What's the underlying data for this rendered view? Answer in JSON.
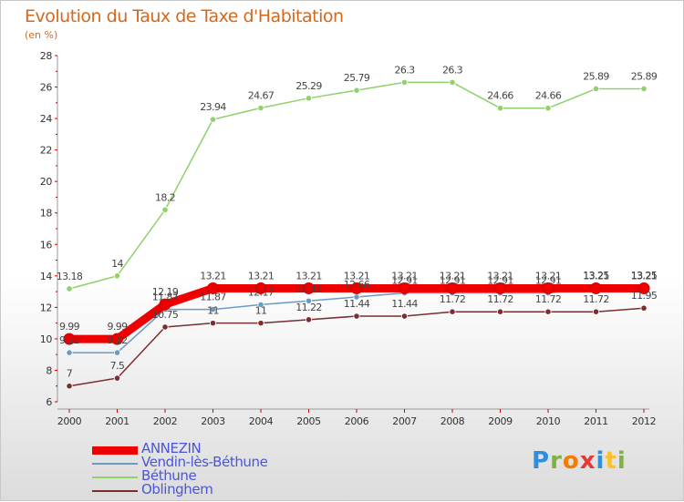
{
  "title": "Evolution du Taux de Taxe d'Habitation",
  "subtitle": "(en %)",
  "logo": {
    "letters": [
      {
        "ch": "P",
        "color": "#2f8ee0"
      },
      {
        "ch": "r",
        "color": "#7cb342"
      },
      {
        "ch": "o",
        "color": "#f57c00"
      },
      {
        "ch": "x",
        "color": "#e53935"
      },
      {
        "ch": "i",
        "color": "#2f8ee0"
      },
      {
        "ch": "t",
        "color": "#fbc02d"
      },
      {
        "ch": "i",
        "color": "#7cb342"
      }
    ]
  },
  "chart_data": {
    "type": "line",
    "title": "Evolution du Taux de Taxe d'Habitation",
    "ylabel": "(en %)",
    "x": [
      "2000",
      "2001",
      "2002",
      "2003",
      "2004",
      "2005",
      "2006",
      "2007",
      "2008",
      "2009",
      "2010",
      "2011",
      "2012"
    ],
    "ylim": [
      6,
      28
    ],
    "yticks": [
      6,
      8,
      10,
      12,
      14,
      16,
      18,
      20,
      22,
      24,
      26,
      28
    ],
    "grid": false,
    "legend_position": "bottom-left",
    "series": [
      {
        "name": "ANNEZIN",
        "color": "#ee0000",
        "values": [
          9.99,
          9.99,
          12.19,
          13.21,
          13.21,
          13.21,
          13.21,
          13.21,
          13.21,
          13.21,
          13.21,
          13.21,
          13.21
        ],
        "labels": [
          "9.99",
          "9.99",
          "12.19",
          "13.21",
          "13.21",
          "13.21",
          "13.21",
          "13.21",
          "13.21",
          "13.21",
          "13.21",
          "13.21",
          "13.21"
        ]
      },
      {
        "name": "Vendin-lès-Béthune",
        "color": "#6b9ac4",
        "values": [
          9.12,
          9.12,
          11.87,
          11.87,
          12.17,
          12.41,
          12.66,
          12.91,
          12.91,
          12.91,
          12.91,
          13.25,
          13.25
        ],
        "labels": [
          "9.12",
          "9.12",
          "11.87",
          "11.87",
          "12.17",
          "12.41",
          "12.66",
          "12.91",
          "12.91",
          "12.91",
          "12.91",
          "13.25",
          "13.25"
        ]
      },
      {
        "name": "Béthune",
        "color": "#8fd16a",
        "values": [
          13.18,
          14,
          18.2,
          23.94,
          24.67,
          25.29,
          25.79,
          26.3,
          26.3,
          24.66,
          24.66,
          25.89,
          25.89
        ],
        "labels": [
          "13.18",
          "14",
          "18.2",
          "23.94",
          "24.67",
          "25.29",
          "25.79",
          "26.3",
          "26.3",
          "24.66",
          "24.66",
          "25.89",
          "25.89"
        ]
      },
      {
        "name": "Oblinghem",
        "color": "#7a2e2e",
        "values": [
          7,
          7.5,
          10.75,
          11,
          11,
          11.22,
          11.44,
          11.44,
          11.72,
          11.72,
          11.72,
          11.72,
          11.95
        ],
        "labels": [
          "7",
          "7.5",
          "10.75",
          "11",
          "11",
          "11.22",
          "11.44",
          "11.44",
          "11.72",
          "11.72",
          "11.72",
          "11.72",
          "11.95"
        ]
      }
    ]
  }
}
